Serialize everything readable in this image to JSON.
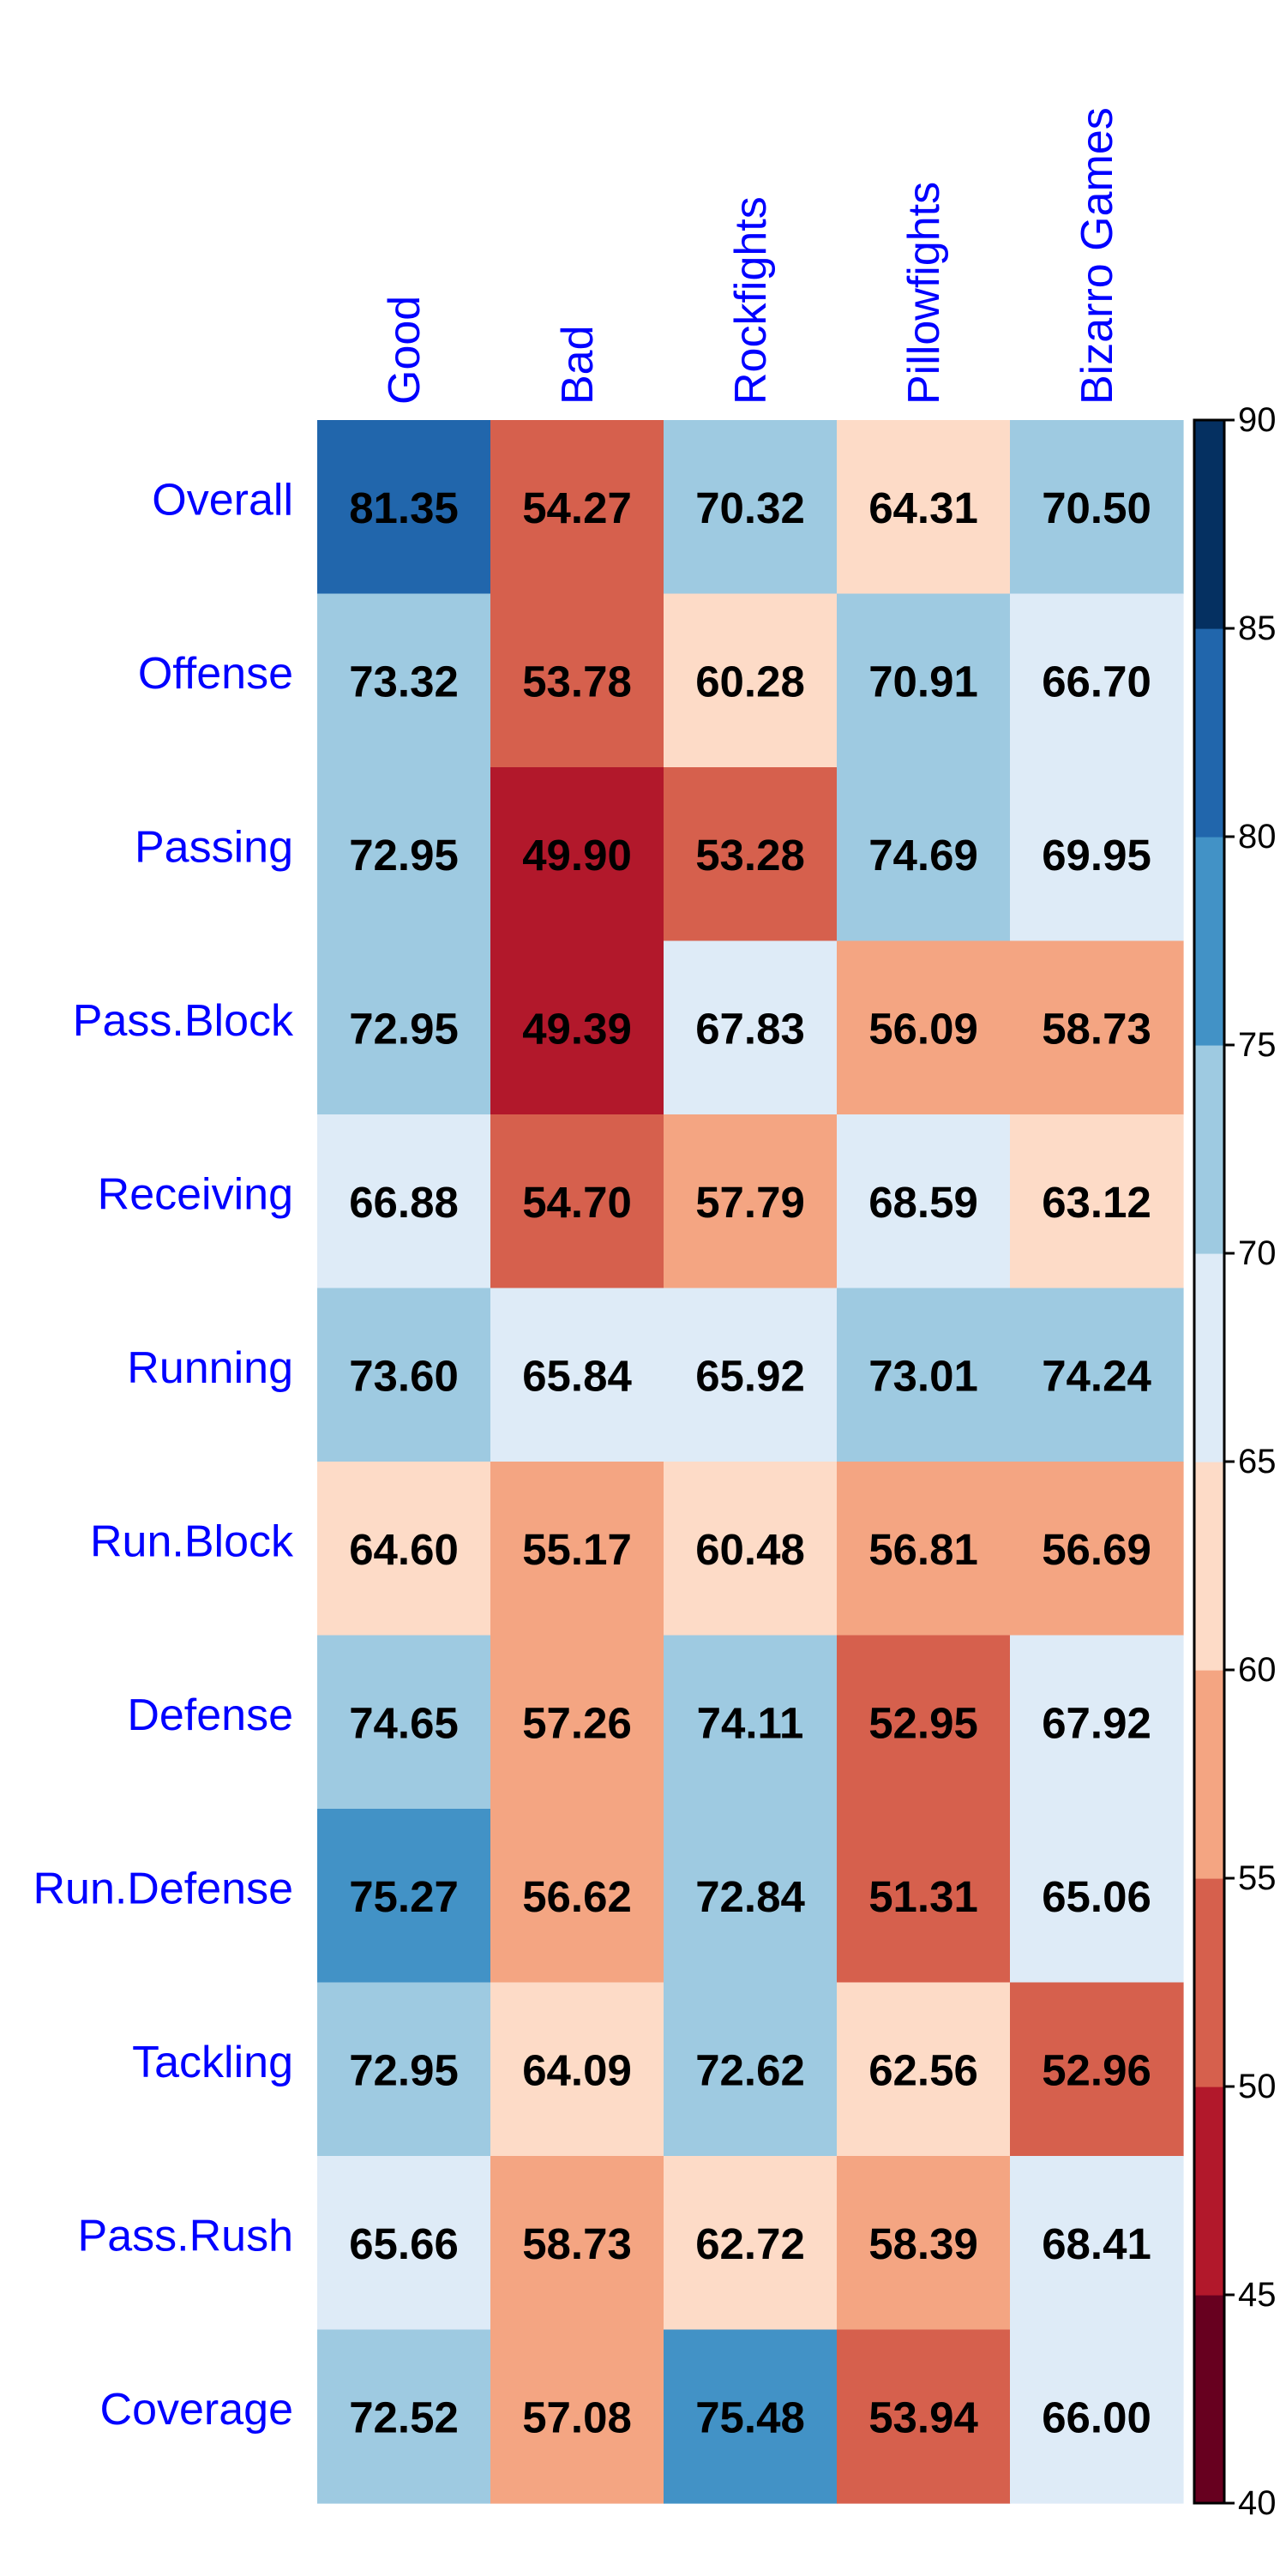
{
  "chart_data": {
    "type": "heatmap",
    "columns": [
      "Good",
      "Bad",
      "Rockfights",
      "Pillowfights",
      "Bizarro Games"
    ],
    "rows": [
      "Overall",
      "Offense",
      "Passing",
      "Pass.Block",
      "Receiving",
      "Running",
      "Run.Block",
      "Defense",
      "Run.Defense",
      "Tackling",
      "Pass.Rush",
      "Coverage"
    ],
    "values": [
      [
        "81.35",
        "54.27",
        "70.32",
        "64.31",
        "70.50"
      ],
      [
        "73.32",
        "53.78",
        "60.28",
        "70.91",
        "66.70"
      ],
      [
        "72.95",
        "49.90",
        "53.28",
        "74.69",
        "69.95"
      ],
      [
        "72.95",
        "49.39",
        "67.83",
        "56.09",
        "58.73"
      ],
      [
        "66.88",
        "54.70",
        "57.79",
        "68.59",
        "63.12"
      ],
      [
        "73.60",
        "65.84",
        "65.92",
        "73.01",
        "74.24"
      ],
      [
        "64.60",
        "55.17",
        "60.48",
        "56.81",
        "56.69"
      ],
      [
        "74.65",
        "57.26",
        "74.11",
        "52.95",
        "67.92"
      ],
      [
        "75.27",
        "56.62",
        "72.84",
        "51.31",
        "65.06"
      ],
      [
        "72.95",
        "64.09",
        "72.62",
        "62.56",
        "52.96"
      ],
      [
        "65.66",
        "58.73",
        "62.72",
        "58.39",
        "68.41"
      ],
      [
        "72.52",
        "57.08",
        "75.48",
        "53.94",
        "66.00"
      ]
    ],
    "colorbar": {
      "range": [
        40,
        90
      ],
      "ticks": [
        "40",
        "45",
        "50",
        "55",
        "60",
        "65",
        "70",
        "75",
        "80",
        "85",
        "90"
      ],
      "bins": [
        {
          "min": 40,
          "max": 45,
          "color": "#67001f"
        },
        {
          "min": 45,
          "max": 50,
          "color": "#b2182b"
        },
        {
          "min": 50,
          "max": 55,
          "color": "#d6604d"
        },
        {
          "min": 55,
          "max": 60,
          "color": "#f4a582"
        },
        {
          "min": 60,
          "max": 65,
          "color": "#fddbc7"
        },
        {
          "min": 65,
          "max": 70,
          "color": "#deebf7"
        },
        {
          "min": 70,
          "max": 75,
          "color": "#9ecae1"
        },
        {
          "min": 75,
          "max": 80,
          "color": "#4292c6"
        },
        {
          "min": 80,
          "max": 85,
          "color": "#2166ac"
        },
        {
          "min": 85,
          "max": 90,
          "color": "#053061"
        }
      ]
    },
    "label_color": "#0000ff",
    "value_color": "#000000"
  }
}
